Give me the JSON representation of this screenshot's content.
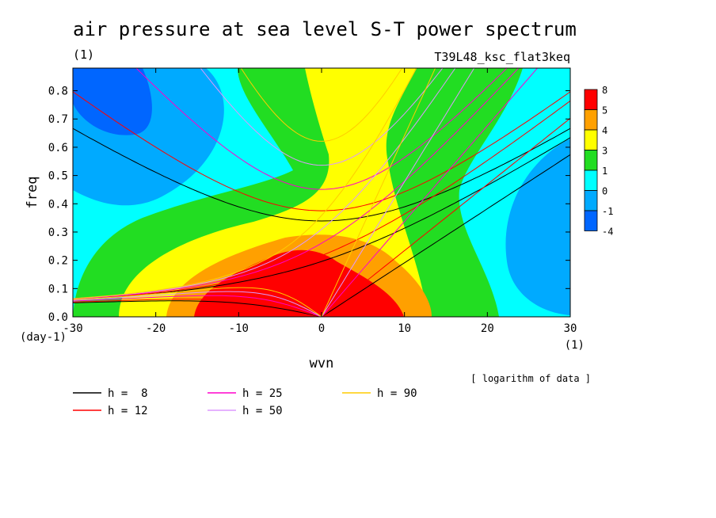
{
  "chart_data": {
    "type": "heatmap",
    "title": "air pressure at sea level S-T power spectrum",
    "title_unit": "(1)",
    "experiment": "T39L48_ksc_flat3keq",
    "xlabel": "wvn",
    "ylabel": "freq",
    "x_unit": "(1)",
    "y_unit": "(day-1)",
    "xlim": [
      -30,
      30
    ],
    "ylim": [
      0,
      0.88
    ],
    "x_ticks": [
      "-30",
      "-20",
      "-10",
      "0",
      "10",
      "20",
      "30"
    ],
    "y_ticks": [
      "0.0",
      "0.1",
      "0.2",
      "0.3",
      "0.4",
      "0.5",
      "0.6",
      "0.7",
      "0.8"
    ],
    "note": "[ logarithm of data ]",
    "colorbar": {
      "labels": [
        "8",
        "5",
        "4",
        "3",
        "1",
        "0",
        "-1",
        "-4"
      ],
      "colors": [
        "#ff0000",
        "#ffa000",
        "#ffff00",
        "#22dd22",
        "#00ffff",
        "#00aaff",
        "#0066ff"
      ]
    },
    "dispersion_curves": [
      {
        "name": "h =  8",
        "h": 8,
        "color": "#000000"
      },
      {
        "name": "h = 12",
        "h": 12,
        "color": "#ff0000"
      },
      {
        "name": "h = 25",
        "h": 25,
        "color": "#ff00cc"
      },
      {
        "name": "h = 50",
        "h": 50,
        "color": "#dd99ff"
      },
      {
        "name": "h = 90",
        "h": 90,
        "color": "#ffcc00"
      }
    ]
  }
}
